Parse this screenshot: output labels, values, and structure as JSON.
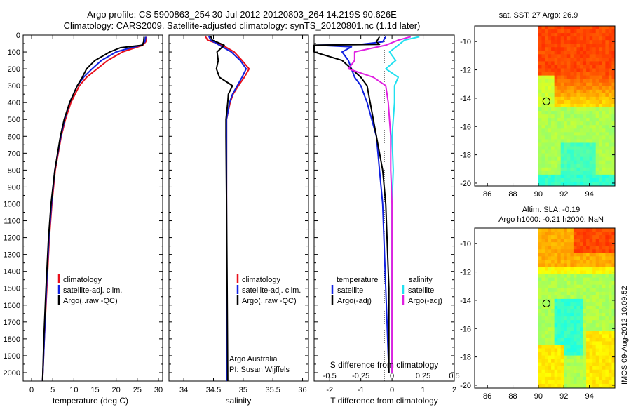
{
  "figure": {
    "title_line1": "Argo profile: CS 5900863_254 30-Jul-2012 20120803_264 14.219S 90.626E",
    "title_line2": "Climatology: CARS2009. Satellite-adjusted climatology: synTS_20120801.nc (1.1d later)",
    "watermark": "IMOS 09-Aug-2012 10:09:52"
  },
  "colors": {
    "climatology": "#e8101c",
    "satellite": "#1020e0",
    "argo": "#000000",
    "satellite_salinity": "#20e0f0",
    "argo_salinity": "#e020e0"
  },
  "chart_data": [
    {
      "type": "line",
      "panel": "temperature",
      "xlabel": "temperature (deg C)",
      "ylim": [
        0,
        2050
      ],
      "xlim": [
        -2,
        31
      ],
      "xticks": [
        "0",
        "5",
        "10",
        "15",
        "20",
        "25",
        "30"
      ],
      "yticks": [
        "0",
        "100",
        "200",
        "300",
        "400",
        "500",
        "600",
        "700",
        "800",
        "900",
        "1000",
        "1100",
        "1200",
        "1300",
        "1400",
        "1500",
        "1600",
        "1700",
        "1800",
        "1900",
        "2000"
      ],
      "legend": [
        "climatology",
        "satellite-adj. clim.",
        "Argo(..raw -QC)"
      ],
      "depth": [
        10,
        40,
        60,
        75,
        100,
        150,
        200,
        250,
        300,
        400,
        500,
        600,
        800,
        1000,
        1200,
        1500,
        1800,
        2050
      ],
      "series": [
        {
          "name": "climatology",
          "values": [
            27.2,
            27.0,
            26.3,
            24.5,
            21.5,
            18.0,
            15.5,
            13.0,
            11.3,
            9.3,
            8.0,
            7.0,
            5.6,
            4.8,
            4.2,
            3.6,
            3.0,
            2.6
          ]
        },
        {
          "name": "satellite-adj. clim.",
          "values": [
            27.0,
            26.8,
            26.0,
            23.5,
            20.0,
            16.5,
            14.3,
            12.3,
            10.8,
            9.0,
            7.8,
            6.9,
            5.5,
            4.7,
            4.1,
            3.5,
            3.0,
            2.6
          ]
        },
        {
          "name": "Argo(..raw -QC)",
          "values": [
            26.6,
            26.5,
            26.2,
            21.0,
            18.5,
            15.0,
            13.0,
            12.0,
            10.8,
            9.0,
            7.7,
            6.8,
            5.5,
            4.6,
            4.0,
            3.4,
            2.9,
            2.6
          ]
        }
      ]
    },
    {
      "type": "line",
      "panel": "salinity",
      "xlabel": "salinity",
      "ylim": [
        0,
        2050
      ],
      "xlim": [
        33.75,
        36.1
      ],
      "xticks": [
        "34",
        "34.5",
        "35",
        "35.5",
        "36"
      ],
      "legend": [
        "climatology",
        "satellite-adj. clim.",
        "Argo(..raw -QC)"
      ],
      "annotation_line1": "Argo Australia",
      "annotation_line2": "PI: Susan Wijffels",
      "depth": [
        5,
        30,
        60,
        100,
        150,
        200,
        250,
        300,
        350,
        400,
        500,
        600,
        1000,
        1500,
        2050
      ],
      "series": [
        {
          "name": "climatology",
          "values": [
            34.36,
            34.4,
            34.65,
            34.85,
            34.98,
            35.1,
            35.02,
            34.92,
            34.83,
            34.78,
            34.72,
            34.72,
            34.72,
            34.72,
            34.73
          ]
        },
        {
          "name": "satellite-adj. clim.",
          "values": [
            34.42,
            34.45,
            34.6,
            34.8,
            34.95,
            35.05,
            34.98,
            34.9,
            34.82,
            34.77,
            34.72,
            34.72,
            34.72,
            34.72,
            34.73
          ]
        },
        {
          "name": "Argo(..raw -QC)",
          "values": [
            34.45,
            34.48,
            34.68,
            34.56,
            34.58,
            34.55,
            34.6,
            34.82,
            34.75,
            34.74,
            34.71,
            34.71,
            34.72,
            34.73,
            34.74
          ]
        }
      ]
    },
    {
      "type": "line",
      "panel": "difference",
      "xlabel_top": "S difference from climatology",
      "xlabel": "T difference from climatology",
      "xlim_T": [
        -2.5,
        2.0
      ],
      "s_per_t": 0.25,
      "ylim": [
        0,
        2050
      ],
      "xticks_T": [
        "-2",
        "-1",
        "0",
        "1",
        "2"
      ],
      "xticks_S": [
        "-0.5",
        "-0.25",
        "0",
        "0.25",
        "0.5"
      ],
      "legend_left_title": "temperature",
      "legend_right_title": "salinity",
      "legend": [
        "satellite",
        "Argo(-adj)",
        "satellite",
        "Argo(-adj)"
      ],
      "depth_T": [
        10,
        40,
        55,
        60,
        70,
        100,
        150,
        200,
        250,
        300,
        400,
        600,
        800,
        1000,
        1500,
        2000
      ],
      "series_T": [
        {
          "name": "satellite",
          "values": [
            -0.2,
            -0.3,
            -1.0,
            -2.4,
            -1.3,
            -1.6,
            -1.4,
            -1.3,
            -1.2,
            -1.0,
            -0.8,
            -0.5,
            -0.4,
            -0.3,
            -0.2,
            -0.1
          ]
        },
        {
          "name": "Argo(-adj)",
          "values": [
            -0.4,
            -0.5,
            -0.4,
            -2.5,
            -2.5,
            -2.5,
            -1.6,
            -1.3,
            -1.0,
            -0.8,
            -0.7,
            -0.5,
            -0.3,
            -0.2,
            -0.1,
            -0.1
          ]
        }
      ],
      "depth_S": [
        10,
        30,
        60,
        100,
        150,
        200,
        250,
        300,
        400,
        600,
        800,
        1000,
        1500,
        2000
      ],
      "series_S": [
        {
          "name": "satellite",
          "values": [
            0.22,
            0.1,
            0.05,
            -0.02,
            0.03,
            -0.05,
            0.05,
            0.02,
            0.02,
            0.0,
            0.01,
            0.0,
            0.0,
            0.0
          ]
        },
        {
          "name": "Argo(-adj)",
          "values": [
            0.15,
            0.05,
            -0.05,
            -0.3,
            -0.3,
            -0.35,
            -0.15,
            -0.05,
            -0.03,
            -0.01,
            -0.01,
            0.0,
            0.0,
            0.0
          ]
        }
      ]
    },
    {
      "type": "heatmap",
      "panel": "sst_map",
      "title": "sat. SST: 27   Argo: 26.9",
      "xlim": [
        85,
        96
      ],
      "ylim": [
        -20.2,
        -8.9
      ],
      "xticks": [
        "86",
        "88",
        "90",
        "92",
        "94"
      ],
      "yticks": [
        "-10",
        "-12",
        "-14",
        "-16",
        "-18",
        "-20"
      ],
      "data_lon_range": [
        90,
        96
      ],
      "argo_marker": {
        "lon": 90.626,
        "lat": -14.219
      }
    },
    {
      "type": "heatmap",
      "panel": "sla_map",
      "title_line1": "Altim. SLA: -0.19",
      "title_line2": "Argo h1000: -0.21 h2000: NaN",
      "xlim": [
        85,
        96
      ],
      "ylim": [
        -20.2,
        -8.9
      ],
      "xticks": [
        "86",
        "88",
        "90",
        "92",
        "94"
      ],
      "yticks": [
        "-10",
        "-12",
        "-14",
        "-16",
        "-18",
        "-20"
      ],
      "data_lon_range": [
        90,
        96
      ],
      "argo_marker": {
        "lon": 90.626,
        "lat": -14.219
      }
    }
  ]
}
